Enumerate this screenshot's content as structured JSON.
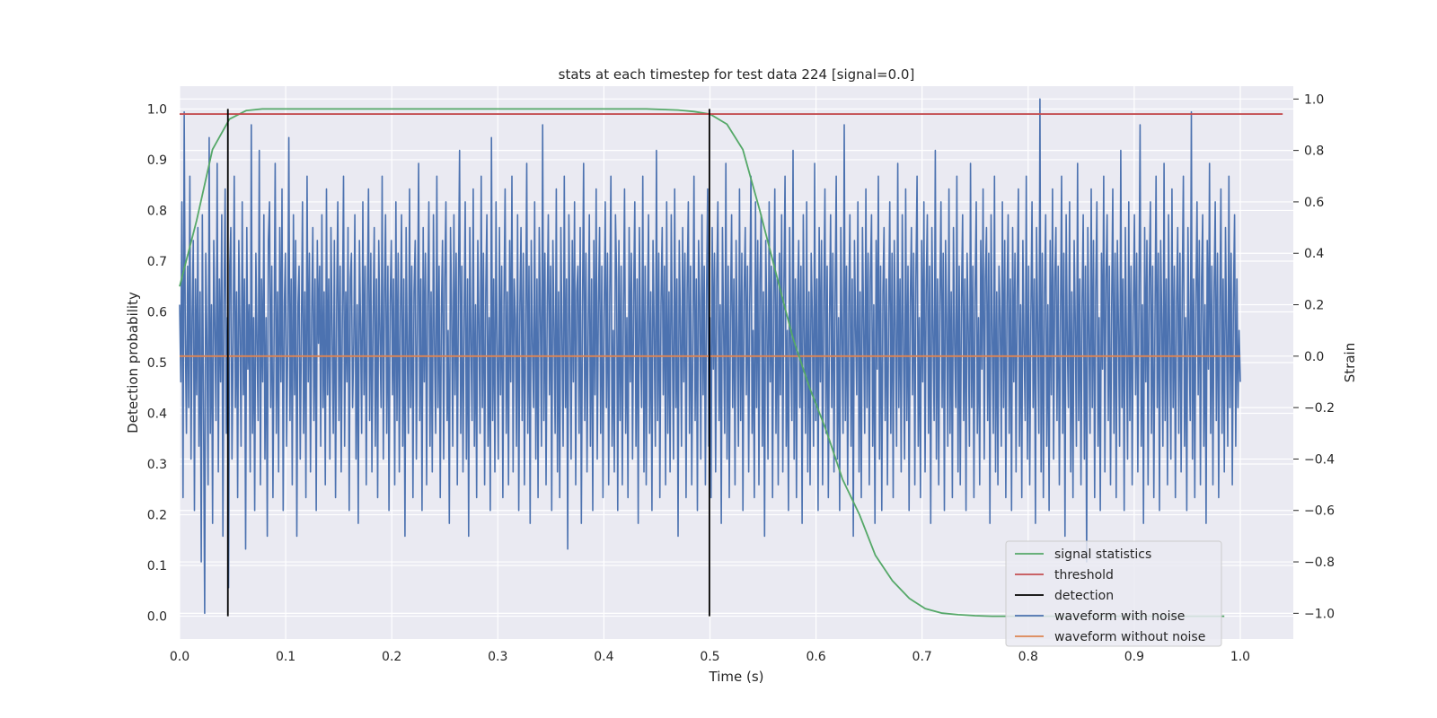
{
  "chart_data": {
    "type": "line",
    "title": "stats at each timestep for test data 224 [signal=0.0]",
    "xlabel": "Time (s)",
    "ylabel_left": "Detection probability",
    "ylabel_right": "Strain",
    "xlim": [
      0.0,
      1.05
    ],
    "ylim_left": [
      -0.045,
      1.045
    ],
    "ylim_right": [
      -1.1,
      1.05
    ],
    "x_ticks": [
      0.0,
      0.1,
      0.2,
      0.3,
      0.4,
      0.5,
      0.6,
      0.7,
      0.8,
      0.9,
      1.0
    ],
    "x_tick_labels": [
      "0.0",
      "0.1",
      "0.2",
      "0.3",
      "0.4",
      "0.5",
      "0.6",
      "0.7",
      "0.8",
      "0.9",
      "1.0"
    ],
    "y_left_ticks": [
      0.0,
      0.1,
      0.2,
      0.3,
      0.4,
      0.5,
      0.6,
      0.7,
      0.8,
      0.9,
      1.0
    ],
    "y_left_tick_labels": [
      "0.0",
      "0.1",
      "0.2",
      "0.3",
      "0.4",
      "0.5",
      "0.6",
      "0.7",
      "0.8",
      "0.9",
      "1.0"
    ],
    "y_right_ticks": [
      -1.0,
      -0.8,
      -0.6,
      -0.4,
      -0.2,
      0.0,
      0.2,
      0.4,
      0.6,
      0.8,
      1.0
    ],
    "y_right_tick_labels": [
      "−1.0",
      "−0.8",
      "−0.6",
      "−0.4",
      "−0.2",
      "0.0",
      "0.2",
      "0.4",
      "0.6",
      "0.8",
      "1.0"
    ],
    "grid": true,
    "legend_position": "lower-right",
    "series": [
      {
        "name": "signal statistics",
        "axis": "left",
        "color": "#55a868",
        "x": [
          0.0,
          0.016,
          0.031,
          0.047,
          0.063,
          0.078,
          0.094,
          0.11,
          0.2,
          0.3,
          0.4,
          0.44,
          0.47,
          0.485,
          0.5,
          0.516,
          0.531,
          0.547,
          0.563,
          0.578,
          0.594,
          0.609,
          0.625,
          0.641,
          0.656,
          0.672,
          0.688,
          0.703,
          0.719,
          0.734,
          0.75,
          0.766,
          0.8,
          0.9,
          0.97,
          0.985
        ],
        "y": [
          0.65,
          0.78,
          0.92,
          0.98,
          0.997,
          1.0,
          1.0,
          1.0,
          1.0,
          1.0,
          1.0,
          1.0,
          0.998,
          0.995,
          0.99,
          0.97,
          0.92,
          0.8,
          0.67,
          0.55,
          0.45,
          0.37,
          0.27,
          0.2,
          0.12,
          0.07,
          0.035,
          0.015,
          0.006,
          0.003,
          0.001,
          0.0,
          0.0,
          0.0,
          0.0,
          0.0
        ]
      },
      {
        "name": "threshold",
        "axis": "left",
        "color": "#c44e52",
        "x": [
          0.0,
          1.04
        ],
        "y": [
          0.99,
          0.99
        ]
      },
      {
        "name": "detection",
        "axis": "left",
        "color": "#000000",
        "x": [
          0.0455,
          0.4995
        ],
        "y": [
          0.0,
          1.0
        ]
      },
      {
        "name": "waveform with noise",
        "axis": "right",
        "color": "#4c72b0",
        "x_range": [
          0.0,
          1.0
        ],
        "y": [
          0.2,
          -0.1,
          0.6,
          -0.55,
          0.95,
          0.1,
          -0.3,
          0.35,
          -0.2,
          0.7,
          -0.4,
          0.15,
          0.45,
          -0.6,
          0.3,
          -0.15,
          0.5,
          -0.35,
          0.25,
          -0.8,
          0.55,
          -0.2,
          -1.0,
          0.4,
          0.05,
          -0.5,
          0.85,
          -0.3,
          0.2,
          -0.65,
          0.45,
          0.1,
          -0.25,
          0.75,
          -0.45,
          0.3,
          -0.1,
          0.55,
          -0.7,
          0.2,
          0.65,
          -0.3,
          0.15,
          -0.9,
          0.35,
          0.5,
          -0.4,
          0.05,
          0.7,
          -0.2,
          0.25,
          -0.55,
          0.45,
          0.1,
          -0.35,
          0.6,
          -0.15,
          0.3,
          -0.75,
          0.5,
          -0.05,
          0.2,
          -0.45,
          0.9,
          -0.3,
          0.15,
          -0.6,
          0.4,
          0.05,
          -0.25,
          0.8,
          -0.5,
          0.3,
          -0.1,
          0.55,
          -0.4,
          0.15,
          -0.7,
          0.45,
          0.6,
          -0.2,
          0.35,
          -0.55,
          0.1,
          0.75,
          -0.3,
          0.25,
          -0.45,
          0.5,
          -0.1,
          0.65,
          -0.6,
          0.2,
          0.4,
          -0.35,
          0.05,
          0.85,
          -0.25,
          0.3,
          -0.5,
          0.55,
          -0.15,
          0.45,
          -0.7,
          0.2,
          0.35,
          -0.4,
          0.1,
          0.6,
          -0.3,
          0.25,
          -0.55,
          0.7,
          -0.1,
          0.4,
          -0.45,
          0.15,
          0.5,
          -0.25,
          0.3,
          -0.6,
          0.45,
          0.05,
          0.35,
          -0.35,
          0.55,
          -0.2,
          0.25,
          -0.5,
          0.65,
          -0.15,
          0.3,
          -0.4,
          0.5,
          0.1,
          -0.3,
          0.45,
          -0.55,
          0.2,
          0.6,
          -0.25,
          0.35,
          -0.45,
          0.15,
          0.7,
          -0.35,
          0.25,
          -0.1,
          0.5,
          -0.6,
          0.3,
          0.4,
          -0.2,
          0.05,
          0.55,
          -0.4,
          0.2,
          -0.65,
          0.45,
          0.1,
          -0.3,
          0.6,
          -0.15,
          0.35,
          -0.5,
          0.25,
          0.65,
          -0.25,
          0.4,
          -0.45,
          0.15,
          0.5,
          -0.35,
          0.3,
          -0.55,
          0.45,
          0.1,
          -0.2,
          0.7,
          -0.4,
          0.25,
          0.55,
          -0.3,
          0.35,
          -0.6,
          0.2,
          0.45,
          -0.15,
          0.3,
          -0.5,
          0.6,
          -0.25,
          0.4,
          -0.45,
          0.15,
          0.55,
          -0.35,
          0.3,
          -0.7,
          0.5,
          0.05,
          -0.3,
          0.65,
          -0.2,
          0.35,
          -0.55,
          0.25,
          0.45,
          -0.4,
          0.1,
          0.75,
          -0.25,
          0.3,
          -0.6,
          0.5,
          -0.1,
          0.4,
          -0.5,
          0.2,
          0.6,
          -0.35,
          0.25,
          -0.45,
          0.55,
          0.05,
          -0.3,
          0.7,
          -0.2,
          0.35,
          -0.55,
          0.15,
          0.45,
          -0.4,
          0.3,
          0.6,
          -0.25,
          0.1,
          -0.65,
          0.5,
          0.2,
          -0.35,
          0.55,
          -0.15,
          0.4,
          -0.5,
          0.25,
          0.8,
          -0.3,
          0.35,
          -0.45,
          0.15,
          0.6,
          -0.4,
          0.3,
          -0.7,
          0.5,
          0.05,
          -0.25,
          0.65,
          -0.35,
          0.2,
          -0.55,
          0.45,
          0.1,
          -0.3,
          0.7,
          -0.2,
          0.4,
          -0.5,
          0.25,
          0.55,
          -0.35,
          0.15,
          -0.6,
          0.85,
          -0.25,
          0.3,
          -0.45,
          0.6,
          0.05,
          -0.4,
          0.5,
          -0.15,
          0.35,
          -0.55,
          0.2,
          0.65,
          -0.3,
          0.25,
          -0.5,
          0.45,
          -0.1,
          0.7,
          -0.45,
          0.3,
          0.15,
          -0.35,
          0.55,
          -0.6,
          0.2,
          0.5,
          -0.25,
          0.4,
          -0.5,
          0.1,
          0.75,
          -0.3,
          0.35,
          -0.65,
          0.45,
          0.05,
          -0.2,
          0.6,
          -0.4,
          0.3,
          -0.55,
          0.5,
          0.15,
          -0.35,
          0.9,
          -0.25,
          0.4,
          -0.5,
          0.2,
          0.55,
          -0.15,
          0.35,
          -0.6,
          0.45,
          0.1,
          -0.3,
          0.65,
          -0.45,
          0.25,
          -0.55,
          0.5,
          0.05,
          -0.35,
          0.7,
          -0.2,
          0.3,
          -0.75,
          0.55,
          0.15,
          -0.4,
          0.45,
          -0.1,
          0.6,
          -0.5,
          0.25,
          0.35,
          -0.3,
          0.5,
          -0.65,
          0.2,
          0.75,
          -0.25,
          0.4,
          -0.45,
          0.1,
          0.55,
          -0.35,
          0.3,
          -0.6,
          0.45,
          -0.15,
          0.65,
          -0.4,
          0.2,
          0.5,
          -0.3,
          0.35,
          -0.55,
          0.15,
          0.6,
          -0.2,
          0.4,
          -0.5,
          0.25,
          0.7,
          -0.35,
          0.1,
          -0.45,
          0.55,
          0.3,
          -0.6,
          0.45,
          -0.25,
          0.35,
          -0.5,
          0.2,
          0.65,
          -0.3,
          0.15,
          -0.55,
          0.5,
          -0.1,
          0.4,
          -0.4,
          0.25,
          0.6,
          -0.35,
          0.3,
          -0.65,
          0.5,
          0.05,
          -0.2,
          0.7,
          -0.45,
          0.35,
          -0.5,
          0.15,
          0.55,
          -0.3,
          0.25,
          -0.6,
          0.45,
          0.1,
          -0.35,
          0.8,
          -0.25,
          0.4,
          -0.55,
          0.2,
          0.5,
          -0.15,
          0.35,
          -0.5,
          0.6,
          -0.3,
          0.25,
          -0.45,
          0.55,
          0.05,
          -0.4,
          0.65,
          -0.2,
          0.3,
          -0.7,
          0.45,
          0.15,
          -0.35,
          0.5,
          -0.1,
          0.4,
          -0.55,
          0.25,
          0.6,
          -0.3,
          0.35,
          -0.5,
          0.1,
          0.7,
          -0.25,
          0.3,
          -0.6,
          0.45,
          0.2,
          -0.4,
          0.55,
          -0.15,
          0.35,
          -0.5,
          0.25,
          0.65,
          -0.35,
          0.15,
          -0.55,
          0.5,
          -0.05,
          0.4,
          -0.45,
          0.3,
          0.6,
          -0.25,
          0.2,
          -0.65,
          0.5,
          0.1,
          -0.3,
          0.75,
          -0.4,
          0.35,
          -0.55,
          0.15,
          0.55,
          -0.2,
          0.3,
          -0.5,
          0.45,
          0.05,
          -0.35,
          0.65,
          -0.25,
          0.4,
          -0.6,
          0.25,
          0.5,
          -0.15,
          0.35,
          -0.45,
          0.2,
          0.7,
          -0.3,
          0.1,
          -0.55,
          0.6,
          -0.2,
          0.45,
          -0.5,
          0.3,
          0.55,
          -0.35,
          0.25,
          -0.7,
          0.45,
          0.15,
          -0.4,
          0.6,
          -0.1,
          0.35,
          -0.55,
          0.2,
          0.65,
          -0.3,
          0.3,
          -0.5,
          0.4,
          -0.15,
          0.55,
          -0.45,
          0.25,
          0.7,
          -0.35,
          0.1,
          -0.6,
          0.5,
          0.05,
          -0.25,
          0.8,
          -0.4,
          0.3,
          -0.55,
          0.2,
          0.45,
          -0.2,
          0.35,
          -0.65,
          0.55,
          0.1,
          -0.3,
          0.6,
          -0.45,
          0.25,
          -0.5,
          0.4,
          0.15,
          -0.35,
          0.75,
          -0.25,
          0.3,
          -0.6,
          0.5,
          -0.1,
          0.45,
          -0.5,
          0.2,
          0.65,
          -0.3,
          0.35,
          -0.55,
          0.1,
          0.55,
          -0.2,
          0.4,
          -0.45,
          0.25,
          0.7,
          -0.4,
          0.15,
          -0.6,
          0.5,
          0.05,
          -0.3,
          0.9,
          -0.25,
          0.35,
          -0.5,
          0.2,
          0.55,
          -0.35,
          0.3,
          -0.7,
          0.45,
          0.1,
          -0.15,
          0.6,
          -0.45,
          0.25,
          -0.55,
          0.5,
          0.15,
          -0.3,
          0.65,
          -0.2,
          0.4,
          -0.5,
          0.3,
          0.55,
          -0.35,
          0.2,
          -0.65,
          0.45,
          -0.05,
          0.7,
          -0.4,
          0.35,
          -0.6,
          0.25,
          0.5,
          -0.25,
          0.3,
          -0.5,
          0.15,
          0.6,
          -0.3,
          0.4,
          -0.55,
          0.45,
          0.1,
          -0.35,
          0.75,
          -0.2,
          0.3,
          -0.45,
          0.55,
          0.05,
          -0.4,
          0.65,
          -0.25,
          0.35,
          -0.6,
          0.2,
          0.5,
          -0.15,
          0.4,
          -0.5,
          0.3,
          0.7,
          -0.35,
          0.15,
          -0.55,
          0.45,
          -0.1,
          0.6,
          -0.45,
          0.25,
          0.55,
          -0.3,
          0.35,
          -0.65,
          0.5,
          0.1,
          -0.25,
          0.8,
          -0.4,
          0.3,
          -0.5,
          0.2,
          0.6,
          -0.2,
          0.4,
          -0.6,
          0.45,
          0.15,
          -0.35,
          0.65,
          -0.3,
          0.25,
          -0.55,
          0.5,
          0.05,
          -0.2,
          0.7,
          -0.45,
          0.35,
          -0.5,
          0.2,
          0.55,
          -0.25,
          0.3,
          -0.6,
          0.4,
          0.1,
          -0.35,
          0.75,
          -0.2,
          0.35,
          -0.55,
          0.25,
          0.6,
          -0.3,
          0.15,
          -0.5,
          0.45,
          -0.05,
          0.65,
          -0.4,
          0.3,
          0.5,
          -0.25,
          0.4,
          -0.65,
          0.55,
          0.1,
          -0.3,
          0.7,
          -0.45,
          0.25,
          -0.5,
          0.35,
          0.15,
          -0.35,
          0.6,
          -0.2,
          0.45,
          -0.55,
          0.2,
          0.55,
          -0.3,
          0.3,
          -0.6,
          0.5,
          -0.1,
          0.4,
          -0.45,
          0.25,
          0.65,
          -0.35,
          0.2,
          -0.55,
          0.45,
          0.05,
          -0.25,
          0.7,
          -0.4,
          0.35,
          -0.5,
          0.15,
          0.6,
          -0.2,
          0.3,
          -0.65,
          0.5,
          0.1,
          -0.3,
          1.0,
          -0.45,
          0.4,
          -0.55,
          0.25,
          0.55,
          -0.35,
          0.2,
          -0.6,
          0.45,
          -0.15,
          0.65,
          -0.4,
          0.3,
          0.5,
          -0.25,
          0.35,
          -0.5,
          0.1,
          0.7,
          -0.3,
          0.4,
          -0.7,
          0.55,
          0.05,
          -0.2,
          0.6,
          -0.45,
          0.25,
          -0.55,
          0.45,
          0.15,
          -0.35,
          0.75,
          -0.25,
          0.3,
          -0.5,
          0.2,
          0.55,
          -0.4,
          0.35,
          -0.8,
          0.5,
          0.1,
          -0.3,
          0.65,
          -0.2,
          0.45,
          -0.55,
          0.25,
          0.6,
          -0.35,
          0.15,
          -0.6,
          0.4,
          -0.05,
          0.7,
          -0.45,
          0.3,
          0.55,
          -0.25,
          0.35,
          -0.5,
          0.2,
          0.65,
          -0.3,
          0.4,
          -0.55,
          0.45,
          0.1,
          -0.35,
          0.8,
          -0.2,
          0.3,
          -0.6,
          0.5,
          0.05,
          -0.4,
          0.6,
          -0.25,
          0.35,
          -0.5,
          0.15,
          0.55,
          -0.15,
          0.4,
          -0.45,
          0.25,
          0.9,
          -0.35,
          0.2,
          -0.65,
          0.5,
          -0.1,
          0.45,
          -0.5,
          0.3,
          0.6,
          -0.3,
          0.35,
          -0.55,
          0.1,
          0.7,
          -0.2,
          0.4,
          -0.6,
          0.45,
          0.15,
          -0.35,
          0.75,
          -0.25,
          0.3,
          -0.5,
          0.55,
          0.05,
          -0.4,
          0.65,
          -0.2,
          0.35,
          -0.55,
          0.2,
          0.5,
          -0.3,
          0.4,
          -0.45,
          0.25,
          0.7,
          -0.35,
          0.15,
          -0.6,
          0.5,
          0.1,
          -0.25,
          0.95,
          -0.4,
          0.3,
          -0.55,
          0.2,
          0.6,
          -0.15,
          0.45,
          -0.5,
          0.3,
          0.55,
          -0.35,
          0.2,
          -0.65,
          0.45,
          -0.05,
          0.75,
          -0.3,
          0.35,
          -0.5,
          0.25,
          0.6,
          -0.25,
          0.4,
          -0.55,
          0.15,
          0.65,
          -0.3,
          0.3,
          -0.45,
          0.5,
          0.1,
          -0.35,
          0.7,
          -0.2,
          0.4,
          -0.5,
          0.2,
          0.55,
          -0.35,
          0.3,
          -0.2,
          0.1,
          -0.1
        ]
      },
      {
        "name": "waveform without noise",
        "axis": "right",
        "color": "#dd8452",
        "x": [
          0.0,
          1.0
        ],
        "y": [
          0.0,
          0.0
        ]
      }
    ],
    "legend": [
      {
        "label": "signal statistics",
        "color": "#55a868"
      },
      {
        "label": "threshold",
        "color": "#c44e52"
      },
      {
        "label": "detection",
        "color": "#000000"
      },
      {
        "label": "waveform with noise",
        "color": "#4c72b0"
      },
      {
        "label": "waveform without noise",
        "color": "#dd8452"
      }
    ]
  }
}
